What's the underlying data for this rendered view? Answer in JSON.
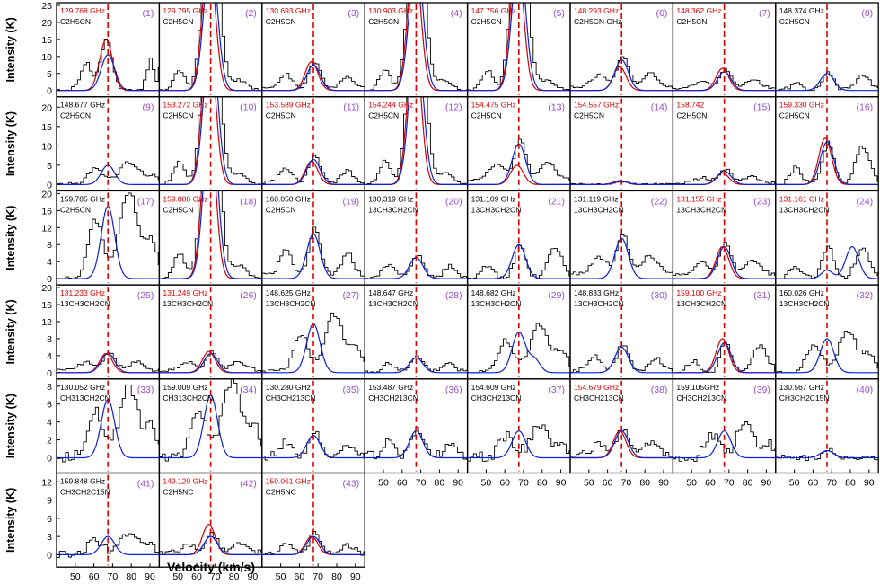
{
  "figure": {
    "xlabel": "Velocity (km/s)",
    "ylabel": "Intensity (K)"
  },
  "colors": {
    "observed": "#000000",
    "model_total": "#d40000",
    "model_component": "#0a22d8",
    "marker": "#e00000",
    "label_red": "#e00000",
    "label_black": "#000000",
    "panel_number": "#9a4fd0"
  },
  "chart_data": {
    "type": "line",
    "panel_layout": "grid 8 columns x 6 rows, 43 panels",
    "x_ticks": [
      50,
      60,
      70,
      80,
      90
    ],
    "xlim": [
      40,
      95
    ],
    "marker_velocity": 67.5,
    "row_yticks": [
      [
        0,
        5,
        10,
        15,
        20,
        25
      ],
      [
        0,
        5,
        10,
        15,
        20
      ],
      [
        0,
        4,
        8,
        12,
        16,
        20
      ],
      [
        0,
        4,
        8,
        12,
        16,
        20
      ],
      [
        0,
        2,
        4,
        6,
        8
      ],
      [
        0,
        3,
        6,
        9,
        12
      ]
    ],
    "row_ylim": [
      [
        0,
        25
      ],
      [
        0,
        22
      ],
      [
        0,
        20
      ],
      [
        0,
        20
      ],
      [
        -1,
        8.5
      ],
      [
        -1,
        13
      ]
    ],
    "panels": [
      {
        "num": "(1)",
        "freq": "129.768 GHz",
        "mol": "C2H5CN",
        "red": true,
        "amp": 10.5,
        "ramp": 15,
        "obs": "a"
      },
      {
        "num": "(2)",
        "freq": "129.795 GHz",
        "mol": "C2H5CN",
        "red": true,
        "amp": 40,
        "ramp": 40,
        "obs": "b"
      },
      {
        "num": "(3)",
        "freq": "130.693 GHz",
        "mol": "C2H5CN",
        "red": true,
        "amp": 7.5,
        "ramp": 8.5,
        "obs": "c"
      },
      {
        "num": "(4)",
        "freq": "130.903 GHz",
        "mol": "C2H5CN",
        "red": true,
        "amp": 40,
        "ramp": 40,
        "obs": "b"
      },
      {
        "num": "(5)",
        "freq": "147.756 GHz",
        "mol": "C2H5CN",
        "red": true,
        "amp": 40,
        "ramp": 40,
        "obs": "b"
      },
      {
        "num": "(6)",
        "freq": "148.293 GHz",
        "mol": "C2H5CN GHz",
        "red": true,
        "amp": 9,
        "ramp": 7,
        "obs": "d"
      },
      {
        "num": "(7)",
        "freq": "148.362 GHz",
        "mol": "C2H5CN",
        "red": true,
        "amp": 5.5,
        "ramp": 6.5,
        "obs": "d"
      },
      {
        "num": "(8)",
        "freq": "148.374 GHz",
        "mol": "C2H5CN",
        "red": false,
        "amp": 5,
        "ramp": null,
        "obs": "e"
      },
      {
        "num": "(9)",
        "freq": "148.677 GHz",
        "mol": "C2H5CN",
        "red": false,
        "amp": 5,
        "ramp": null,
        "obs": "f"
      },
      {
        "num": "(10)",
        "freq": "153.272 GHz",
        "mol": "C2H5CN",
        "red": true,
        "amp": 40,
        "ramp": 40,
        "obs": "b"
      },
      {
        "num": "(11)",
        "freq": "153.589 GHz",
        "mol": "C2H5CN",
        "red": true,
        "amp": 6.5,
        "ramp": 6,
        "obs": "c"
      },
      {
        "num": "(12)",
        "freq": "154.244 GHz",
        "mol": "C2H5CN",
        "red": true,
        "amp": 40,
        "ramp": 40,
        "obs": "b"
      },
      {
        "num": "(13)",
        "freq": "154.475 GHz",
        "mol": "C2H5CN",
        "red": true,
        "amp": 10.5,
        "ramp": 5,
        "obs": "d"
      },
      {
        "num": "(14)",
        "freq": "154.557 GHz",
        "mol": "C2H5CN",
        "red": true,
        "amp": 0.8,
        "ramp": 1,
        "obs": "g"
      },
      {
        "num": "(15)",
        "freq": "158.742",
        "mol": "C2H5CN",
        "red": true,
        "amp": 3.5,
        "ramp": 3,
        "obs": "d"
      },
      {
        "num": "(16)",
        "freq": "159.330 GHz",
        "mol": "C2H5CN",
        "red": true,
        "amp": 11,
        "ramp": 12,
        "obs": "e"
      },
      {
        "num": "(17)",
        "freq": "159.785 GHz",
        "mol": "C2H5CN",
        "red": false,
        "amp": 17,
        "ramp": null,
        "obs": "f"
      },
      {
        "num": "(18)",
        "freq": "159.888 GHz",
        "mol": "C2H5CN",
        "red": true,
        "amp": 40,
        "ramp": 40,
        "obs": "b"
      },
      {
        "num": "(19)",
        "freq": "160.050 GHz",
        "mol": "C2H5CN",
        "red": false,
        "amp": 10.5,
        "ramp": null,
        "obs": "c"
      },
      {
        "num": "(20)",
        "freq": "130.319 GHz",
        "mol": "13CH3CH2CN",
        "red": false,
        "amp": 5,
        "ramp": null,
        "obs": "c"
      },
      {
        "num": "(21)",
        "freq": "131.109 GHz",
        "mol": "13CH3CH2CN",
        "red": false,
        "amp": 8,
        "ramp": null,
        "obs": "e"
      },
      {
        "num": "(22)",
        "freq": "131.119 GHz",
        "mol": "13CH3CH2CN",
        "red": false,
        "amp": 9.5,
        "ramp": null,
        "obs": "d"
      },
      {
        "num": "(23)",
        "freq": "131.155 GHz",
        "mol": "13CH3CH2CN",
        "red": true,
        "amp": 7.5,
        "ramp": 7.5,
        "obs": "d"
      },
      {
        "num": "(24)",
        "freq": "131.161  GHz",
        "mol": "13CH3CH2CN",
        "red": true,
        "amp": 7.5,
        "ramp": 0,
        "obs": "e"
      },
      {
        "num": "(25)",
        "freq": "131.233 GHz",
        "mol": "13CH3CH2CN",
        "red": true,
        "amp": 4.5,
        "ramp": 4.5,
        "obs": "d"
      },
      {
        "num": "(26)",
        "freq": "131.249 GHz",
        "mol": "13CH3CH2CN",
        "red": true,
        "amp": 4.5,
        "ramp": 5,
        "obs": "d"
      },
      {
        "num": "(27)",
        "freq": "148.625 GHz",
        "mol": "13CH3CH2CN",
        "red": false,
        "amp": 11.5,
        "ramp": null,
        "obs": "f"
      },
      {
        "num": "(28)",
        "freq": "148.647 GHz",
        "mol": "13CH3CH2CN",
        "red": false,
        "amp": 3.5,
        "ramp": null,
        "obs": "c"
      },
      {
        "num": "(29)",
        "freq": "148.682  GHz",
        "mol": "13CH3CH2CN",
        "red": false,
        "amp": 9.5,
        "ramp": null,
        "obs": "f"
      },
      {
        "num": "(30)",
        "freq": "148.833 GHz",
        "mol": "13CH3CH2CN",
        "red": false,
        "amp": 6,
        "ramp": null,
        "obs": "c"
      },
      {
        "num": "(31)",
        "freq": "159.100 GHz",
        "mol": "13CH3CH2CN",
        "red": true,
        "amp": 7,
        "ramp": 8,
        "obs": "e"
      },
      {
        "num": "(32)",
        "freq": "160.026 GHz",
        "mol": "13CH3CH2CN",
        "red": false,
        "amp": 8,
        "ramp": null,
        "obs": "f"
      },
      {
        "num": "(33)",
        "freq": "130.052 GHz",
        "mol": "CH313CH2CN",
        "red": false,
        "amp": 6.5,
        "ramp": null,
        "obs": "f"
      },
      {
        "num": "(34)",
        "freq": "159.009 GHz",
        "mol": "CH313CH2CN",
        "red": false,
        "amp": 7,
        "ramp": null,
        "obs": "f"
      },
      {
        "num": "(35)",
        "freq": "130.280 GHz",
        "mol": "CH3CH213CN",
        "red": false,
        "amp": 2.5,
        "ramp": null,
        "obs": "c"
      },
      {
        "num": "(36)",
        "freq": "153.487 GHz",
        "mol": "CH3CH213CN",
        "red": false,
        "amp": 3,
        "ramp": null,
        "obs": "c"
      },
      {
        "num": "(37)",
        "freq": "154.609 GHz",
        "mol": "CH3CH213CN",
        "red": false,
        "amp": 3,
        "ramp": null,
        "obs": "f"
      },
      {
        "num": "(38)",
        "freq": "154.679 GHz",
        "mol": "CH3CH213CN",
        "red": true,
        "amp": 3,
        "ramp": 3,
        "obs": "d"
      },
      {
        "num": "(39)",
        "freq": "159.105GHz",
        "mol": "CH3CH213CN",
        "red": false,
        "amp": 3,
        "ramp": null,
        "obs": "f"
      },
      {
        "num": "(40)",
        "freq": "130.567 GHz",
        "mol": "CH3CH2C15N",
        "red": false,
        "amp": 0.8,
        "ramp": null,
        "obs": "g"
      },
      {
        "num": "(41)",
        "freq": "159.848 GHz",
        "mol": "CH3CH2C15N",
        "red": false,
        "amp": 3,
        "ramp": null,
        "obs": "f"
      },
      {
        "num": "(42)",
        "freq": "149.120 GHz",
        "mol": "C2H5NC",
        "red": true,
        "amp": 3,
        "ramp": 5,
        "obs": "d"
      },
      {
        "num": "(43)",
        "freq": "159.061 GHz",
        "mol": "C2H5NC",
        "red": true,
        "amp": 3,
        "ramp": 3,
        "obs": "c"
      }
    ]
  }
}
